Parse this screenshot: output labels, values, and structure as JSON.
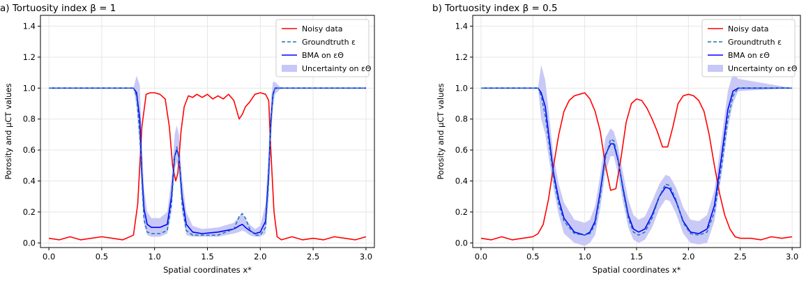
{
  "figure": {
    "colors": {
      "noisy": "#ff0000",
      "groundtruth": "#1f77b4",
      "bma": "#0000ff",
      "uncertainty": "#c6c6f7",
      "grid": "#e6e6e6",
      "axis": "#000000"
    }
  },
  "chart_data": [
    {
      "type": "line",
      "title": "a) Tortuosity index β = 1",
      "xlabel": "Spatial coordinates x*",
      "ylabel": "Porosity and μCT values",
      "xlim": [
        -0.08,
        3.08
      ],
      "ylim": [
        -0.03,
        1.47
      ],
      "xticks": [
        0.0,
        0.5,
        1.0,
        1.5,
        2.0,
        2.5,
        3.0
      ],
      "xtick_labels": [
        "0.0",
        "0.5",
        "1.0",
        "1.5",
        "2.0",
        "2.5",
        "3.0"
      ],
      "yticks": [
        0.0,
        0.2,
        0.4,
        0.6,
        0.8,
        1.0,
        1.2,
        1.4
      ],
      "ytick_labels": [
        "0.0",
        "0.2",
        "0.4",
        "0.6",
        "0.8",
        "1.0",
        "1.2",
        "1.4"
      ],
      "grid": true,
      "legend_position": "top-right",
      "legend": [
        "Noisy data",
        "Groundtruth ε",
        "BMA on εΘ",
        "Uncertainty on εΘ"
      ],
      "series": [
        {
          "name": "Noisy data",
          "style": "solid",
          "x": [
            0.0,
            0.1,
            0.2,
            0.3,
            0.4,
            0.5,
            0.6,
            0.7,
            0.8,
            0.84,
            0.88,
            0.92,
            0.96,
            1.0,
            1.05,
            1.1,
            1.14,
            1.17,
            1.2,
            1.22,
            1.25,
            1.28,
            1.32,
            1.36,
            1.4,
            1.45,
            1.5,
            1.55,
            1.6,
            1.65,
            1.7,
            1.75,
            1.8,
            1.83,
            1.86,
            1.9,
            1.95,
            2.0,
            2.05,
            2.08,
            2.1,
            2.13,
            2.16,
            2.2,
            2.3,
            2.4,
            2.5,
            2.6,
            2.7,
            2.8,
            2.9,
            3.0
          ],
          "y": [
            0.03,
            0.02,
            0.04,
            0.02,
            0.03,
            0.04,
            0.03,
            0.02,
            0.05,
            0.25,
            0.75,
            0.96,
            0.97,
            0.97,
            0.96,
            0.93,
            0.75,
            0.5,
            0.4,
            0.45,
            0.72,
            0.88,
            0.95,
            0.94,
            0.96,
            0.94,
            0.96,
            0.93,
            0.95,
            0.93,
            0.96,
            0.92,
            0.8,
            0.83,
            0.88,
            0.91,
            0.96,
            0.97,
            0.96,
            0.92,
            0.6,
            0.2,
            0.04,
            0.02,
            0.04,
            0.02,
            0.03,
            0.02,
            0.04,
            0.03,
            0.02,
            0.04
          ]
        },
        {
          "name": "Groundtruth ε",
          "style": "dashed",
          "x": [
            0.0,
            0.8,
            0.83,
            0.86,
            0.88,
            0.9,
            0.93,
            0.97,
            1.05,
            1.12,
            1.16,
            1.19,
            1.21,
            1.23,
            1.26,
            1.3,
            1.36,
            1.45,
            1.6,
            1.75,
            1.8,
            1.83,
            1.86,
            1.9,
            1.95,
            2.0,
            2.05,
            2.08,
            2.1,
            2.12,
            2.14,
            2.2,
            3.0
          ],
          "y": [
            1.0,
            1.0,
            0.95,
            0.7,
            0.4,
            0.15,
            0.07,
            0.06,
            0.06,
            0.08,
            0.25,
            0.55,
            0.62,
            0.55,
            0.25,
            0.08,
            0.05,
            0.05,
            0.05,
            0.09,
            0.17,
            0.19,
            0.16,
            0.09,
            0.05,
            0.05,
            0.1,
            0.4,
            0.75,
            0.95,
            1.0,
            1.0,
            1.0
          ]
        },
        {
          "name": "BMA on εΘ",
          "style": "solid",
          "x": [
            0.0,
            0.8,
            0.83,
            0.86,
            0.88,
            0.9,
            0.93,
            0.97,
            1.05,
            1.12,
            1.16,
            1.19,
            1.21,
            1.23,
            1.26,
            1.3,
            1.36,
            1.45,
            1.6,
            1.75,
            1.8,
            1.83,
            1.86,
            1.9,
            1.95,
            2.0,
            2.05,
            2.08,
            2.1,
            2.12,
            2.14,
            2.2,
            3.0
          ],
          "y": [
            1.0,
            1.0,
            0.97,
            0.8,
            0.45,
            0.22,
            0.12,
            0.1,
            0.1,
            0.12,
            0.3,
            0.56,
            0.6,
            0.56,
            0.3,
            0.12,
            0.07,
            0.06,
            0.07,
            0.09,
            0.11,
            0.12,
            0.1,
            0.08,
            0.06,
            0.07,
            0.14,
            0.45,
            0.78,
            0.96,
            1.0,
            1.0,
            1.0
          ]
        },
        {
          "name": "Uncertainty on εΘ",
          "style": "band",
          "x": [
            0.0,
            0.8,
            0.83,
            0.86,
            0.88,
            0.9,
            0.93,
            0.97,
            1.05,
            1.12,
            1.16,
            1.19,
            1.21,
            1.23,
            1.26,
            1.3,
            1.36,
            1.45,
            1.6,
            1.75,
            1.8,
            1.83,
            1.86,
            1.9,
            1.95,
            2.0,
            2.05,
            2.08,
            2.1,
            2.12,
            2.14,
            2.2,
            3.0
          ],
          "lower": [
            1.0,
            1.0,
            0.88,
            0.6,
            0.3,
            0.12,
            0.05,
            0.04,
            0.04,
            0.06,
            0.2,
            0.48,
            0.52,
            0.48,
            0.2,
            0.05,
            0.04,
            0.04,
            0.04,
            0.06,
            0.07,
            0.08,
            0.07,
            0.05,
            0.04,
            0.04,
            0.06,
            0.3,
            0.65,
            0.88,
            0.96,
            1.0,
            1.0
          ],
          "upper": [
            1.0,
            1.0,
            1.08,
            1.02,
            0.65,
            0.35,
            0.2,
            0.16,
            0.16,
            0.2,
            0.42,
            0.7,
            0.76,
            0.7,
            0.42,
            0.2,
            0.11,
            0.09,
            0.1,
            0.13,
            0.17,
            0.19,
            0.15,
            0.12,
            0.09,
            0.11,
            0.25,
            0.62,
            0.92,
            1.04,
            1.04,
            1.0,
            1.0
          ]
        }
      ]
    },
    {
      "type": "line",
      "title": "b) Tortuosity index β = 0.5",
      "xlabel": "Spatial coordinates x*",
      "ylabel": "Porosity and μCT values",
      "xlim": [
        -0.08,
        3.08
      ],
      "ylim": [
        -0.03,
        1.47
      ],
      "xticks": [
        0.0,
        0.5,
        1.0,
        1.5,
        2.0,
        2.5,
        3.0
      ],
      "xtick_labels": [
        "0.0",
        "0.5",
        "1.0",
        "1.5",
        "2.0",
        "2.5",
        "3.0"
      ],
      "yticks": [
        0.0,
        0.2,
        0.4,
        0.6,
        0.8,
        1.0,
        1.2,
        1.4
      ],
      "ytick_labels": [
        "0.0",
        "0.2",
        "0.4",
        "0.6",
        "0.8",
        "1.0",
        "1.2",
        "1.4"
      ],
      "grid": true,
      "legend_position": "top-right",
      "legend": [
        "Noisy data",
        "Groundtruth ε",
        "BMA on εΘ",
        "Uncertainty on εΘ"
      ],
      "series": [
        {
          "name": "Noisy data",
          "style": "solid",
          "x": [
            0.0,
            0.1,
            0.2,
            0.3,
            0.4,
            0.5,
            0.55,
            0.6,
            0.65,
            0.7,
            0.75,
            0.8,
            0.85,
            0.9,
            0.95,
            1.0,
            1.05,
            1.1,
            1.15,
            1.2,
            1.25,
            1.3,
            1.35,
            1.4,
            1.45,
            1.5,
            1.55,
            1.6,
            1.65,
            1.7,
            1.75,
            1.8,
            1.85,
            1.9,
            1.95,
            2.0,
            2.05,
            2.1,
            2.15,
            2.2,
            2.25,
            2.3,
            2.35,
            2.4,
            2.45,
            2.5,
            2.6,
            2.7,
            2.8,
            2.9,
            3.0
          ],
          "y": [
            0.03,
            0.02,
            0.04,
            0.02,
            0.03,
            0.04,
            0.06,
            0.12,
            0.28,
            0.5,
            0.7,
            0.85,
            0.92,
            0.95,
            0.96,
            0.97,
            0.93,
            0.85,
            0.72,
            0.5,
            0.34,
            0.35,
            0.55,
            0.78,
            0.9,
            0.93,
            0.92,
            0.87,
            0.8,
            0.72,
            0.62,
            0.62,
            0.75,
            0.9,
            0.95,
            0.96,
            0.95,
            0.92,
            0.85,
            0.7,
            0.5,
            0.32,
            0.18,
            0.09,
            0.04,
            0.03,
            0.03,
            0.02,
            0.04,
            0.03,
            0.04
          ]
        },
        {
          "name": "Groundtruth ε",
          "style": "dashed",
          "x": [
            0.0,
            0.55,
            0.58,
            0.62,
            0.66,
            0.7,
            0.75,
            0.8,
            0.9,
            1.0,
            1.05,
            1.1,
            1.15,
            1.2,
            1.25,
            1.28,
            1.32,
            1.37,
            1.42,
            1.47,
            1.52,
            1.58,
            1.65,
            1.72,
            1.78,
            1.82,
            1.88,
            1.95,
            2.02,
            2.1,
            2.18,
            2.25,
            2.32,
            2.38,
            2.43,
            2.48,
            3.0
          ],
          "y": [
            1.0,
            1.0,
            0.95,
            0.82,
            0.62,
            0.42,
            0.25,
            0.14,
            0.06,
            0.05,
            0.06,
            0.12,
            0.3,
            0.55,
            0.67,
            0.66,
            0.55,
            0.33,
            0.16,
            0.07,
            0.05,
            0.07,
            0.16,
            0.3,
            0.38,
            0.37,
            0.28,
            0.13,
            0.06,
            0.05,
            0.07,
            0.2,
            0.5,
            0.8,
            0.95,
            1.0,
            1.0
          ]
        },
        {
          "name": "BMA on εΘ",
          "style": "solid",
          "x": [
            0.0,
            0.55,
            0.58,
            0.62,
            0.66,
            0.7,
            0.75,
            0.8,
            0.9,
            1.0,
            1.05,
            1.1,
            1.15,
            1.2,
            1.25,
            1.28,
            1.32,
            1.37,
            1.42,
            1.47,
            1.52,
            1.58,
            1.65,
            1.72,
            1.78,
            1.82,
            1.88,
            1.95,
            2.02,
            2.1,
            2.18,
            2.25,
            2.32,
            2.38,
            2.43,
            2.48,
            3.0
          ],
          "y": [
            1.0,
            1.0,
            0.97,
            0.88,
            0.66,
            0.45,
            0.28,
            0.16,
            0.07,
            0.05,
            0.07,
            0.14,
            0.33,
            0.57,
            0.64,
            0.64,
            0.54,
            0.35,
            0.18,
            0.09,
            0.07,
            0.09,
            0.18,
            0.3,
            0.36,
            0.35,
            0.27,
            0.14,
            0.07,
            0.06,
            0.09,
            0.24,
            0.56,
            0.86,
            0.98,
            1.0,
            1.0
          ]
        },
        {
          "name": "Uncertainty on εΘ",
          "style": "band",
          "x": [
            0.0,
            0.55,
            0.58,
            0.62,
            0.66,
            0.7,
            0.75,
            0.8,
            0.9,
            1.0,
            1.05,
            1.1,
            1.15,
            1.2,
            1.25,
            1.28,
            1.32,
            1.37,
            1.42,
            1.47,
            1.52,
            1.58,
            1.65,
            1.72,
            1.78,
            1.82,
            1.88,
            1.95,
            2.02,
            2.1,
            2.18,
            2.25,
            2.32,
            2.38,
            2.43,
            2.48,
            3.0
          ],
          "lower": [
            1.0,
            1.0,
            0.8,
            0.7,
            0.52,
            0.35,
            0.18,
            0.06,
            0.0,
            -0.02,
            0.0,
            0.05,
            0.22,
            0.46,
            0.56,
            0.56,
            0.45,
            0.26,
            0.1,
            0.02,
            0.0,
            0.02,
            0.1,
            0.22,
            0.28,
            0.27,
            0.19,
            0.06,
            0.0,
            -0.01,
            0.0,
            0.14,
            0.44,
            0.74,
            0.9,
            0.98,
            1.0
          ],
          "upper": [
            1.0,
            1.0,
            1.15,
            1.05,
            0.8,
            0.56,
            0.38,
            0.26,
            0.15,
            0.13,
            0.15,
            0.24,
            0.44,
            0.68,
            0.74,
            0.72,
            0.63,
            0.45,
            0.28,
            0.18,
            0.15,
            0.17,
            0.27,
            0.38,
            0.44,
            0.43,
            0.36,
            0.23,
            0.15,
            0.14,
            0.18,
            0.34,
            0.68,
            0.98,
            1.1,
            1.06,
            1.0
          ]
        }
      ]
    }
  ]
}
